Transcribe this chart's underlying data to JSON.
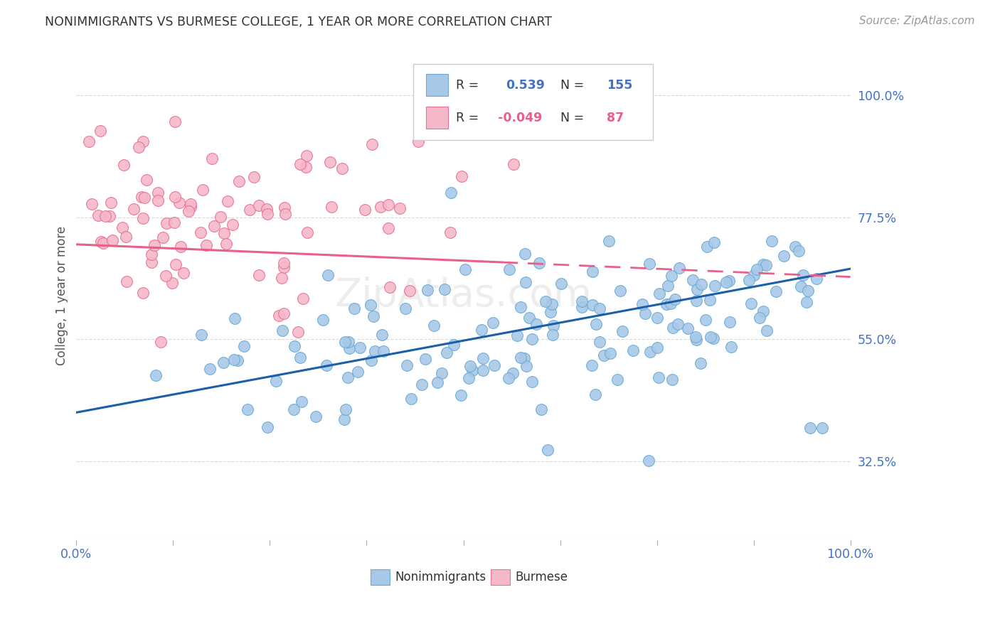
{
  "title": "NONIMMIGRANTS VS BURMESE COLLEGE, 1 YEAR OR MORE CORRELATION CHART",
  "source": "Source: ZipAtlas.com",
  "ylabel": "College, 1 year or more",
  "yticks": [
    "32.5%",
    "55.0%",
    "77.5%",
    "100.0%"
  ],
  "ytick_vals": [
    0.325,
    0.55,
    0.775,
    1.0
  ],
  "xrange": [
    0.0,
    1.0
  ],
  "yrange": [
    0.18,
    1.08
  ],
  "blue_color": "#a8c8e8",
  "blue_edge_color": "#6aaad4",
  "blue_line_color": "#1a5fa8",
  "pink_color": "#f4b8c8",
  "pink_edge_color": "#e87090",
  "pink_line_color": "#e8608a",
  "R_blue": 0.539,
  "N_blue": 155,
  "R_pink": -0.049,
  "N_pink": 87,
  "legend_label_blue": "Nonimmigrants",
  "legend_label_pink": "Burmese",
  "background_color": "#ffffff",
  "grid_color": "#d0d0d0",
  "text_color_blue": "#4472c4",
  "text_color_dark": "#333333",
  "source_color": "#999999",
  "seed": 12345
}
